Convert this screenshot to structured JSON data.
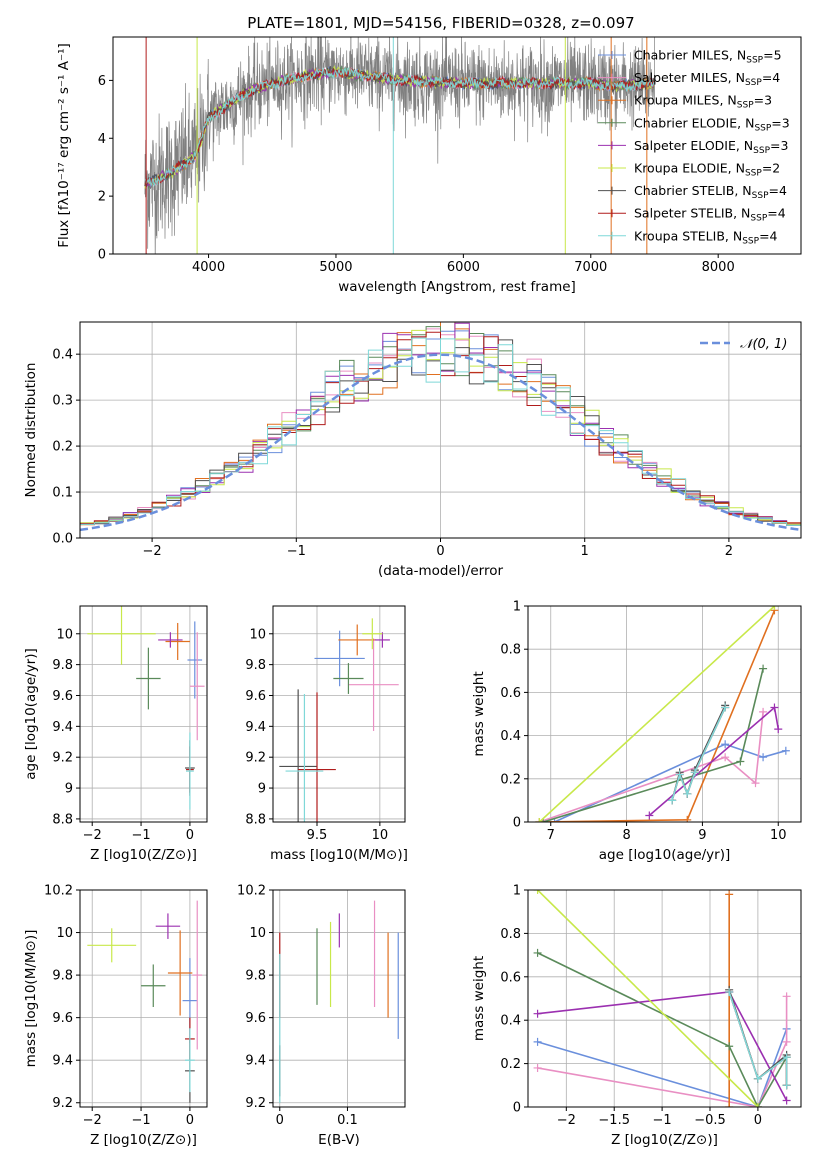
{
  "figure_title": "PLATE=1801, MJD=54156, FIBERID=0328, z=0.097",
  "colors": {
    "Chabrier MILES": "#6a8fdc",
    "Salpeter MILES": "#e98fc3",
    "Kroupa MILES": "#e07020",
    "Chabrier ELODIE": "#5a8a5a",
    "Salpeter ELODIE": "#9b30b0",
    "Kroupa ELODIE": "#c8e84a",
    "Chabrier STELIB": "#505050",
    "Salpeter STELIB": "#b01c1c",
    "Kroupa STELIB": "#7fd8d8",
    "normal": "#6a8fdc",
    "data": "#808080"
  },
  "chart_data": [
    {
      "id": "spectrum",
      "type": "line",
      "title": "PLATE=1801, MJD=54156, FIBERID=0328, z=0.097",
      "xlabel": "wavelength [Angstrom, rest frame]",
      "ylabel": "Flux [fλ10⁻¹⁷ erg cm⁻² s⁻¹ A⁻¹]",
      "xlim": [
        3250,
        8650
      ],
      "ylim": [
        0,
        7.5
      ],
      "xticks": [
        4000,
        5000,
        6000,
        7000,
        8000
      ],
      "yticks": [
        0,
        2,
        4,
        6
      ],
      "grid": false,
      "legend_position": "top-right",
      "legend": [
        "Chabrier MILES, N_SSP=5",
        "Salpeter MILES, N_SSP=4",
        "Kroupa MILES, N_SSP=3",
        "Chabrier ELODIE, N_SSP=3",
        "Salpeter ELODIE, N_SSP=3",
        "Kroupa ELODIE, N_SSP=2",
        "Chabrier STELIB, N_SSP=4",
        "Salpeter STELIB, N_SSP=4",
        "Kroupa STELIB, N_SSP=4"
      ],
      "data_range": [
        3500,
        8300
      ],
      "continuum": [
        [
          3500,
          2.4
        ],
        [
          3700,
          2.8
        ],
        [
          3900,
          3.4
        ],
        [
          4000,
          4.7
        ],
        [
          4300,
          5.6
        ],
        [
          4500,
          5.9
        ],
        [
          4800,
          6.2
        ],
        [
          5000,
          6.3
        ],
        [
          5500,
          6.0
        ],
        [
          6000,
          5.9
        ],
        [
          6500,
          5.9
        ],
        [
          7000,
          5.9
        ],
        [
          7200,
          5.8
        ],
        [
          7500,
          5.9
        ]
      ],
      "model_spikes": [
        {
          "x": 3510,
          "y": 0.0,
          "series": "Salpeter STELIB"
        },
        {
          "x": 3910,
          "y": 0.0,
          "series": "Kroupa ELODIE"
        },
        {
          "x": 5450,
          "y": 0.0,
          "series": "Kroupa STELIB"
        },
        {
          "x": 6800,
          "y": 0.0,
          "series": "Kroupa ELODIE"
        },
        {
          "x": 7160,
          "y": 0.0,
          "series": "Kroupa MILES"
        },
        {
          "x": 7440,
          "y": 0.0,
          "series": "Kroupa MILES"
        }
      ]
    },
    {
      "id": "residuals",
      "type": "line",
      "xlabel": "(data-model)/error",
      "ylabel": "Normed distribution",
      "xlim": [
        -2.5,
        2.5
      ],
      "ylim": [
        0,
        0.47
      ],
      "xticks": [
        -2,
        -1,
        0,
        1,
        2
      ],
      "yticks": [
        0.0,
        0.1,
        0.2,
        0.3,
        0.4
      ],
      "grid": true,
      "legend_position": "top-right",
      "legend": [
        "𝒩(0, 1)"
      ],
      "histogram_bins": 50,
      "normal_mean": 0,
      "normal_sigma": 1
    },
    {
      "id": "age_vs_Z",
      "type": "scatter",
      "xlabel": "Z [log10(Z/Z⊙)]",
      "ylabel": "age  [log10(age/yr)]",
      "xlim": [
        -2.25,
        0.35
      ],
      "ylim": [
        8.78,
        10.18
      ],
      "xticks": [
        -2,
        -1,
        0
      ],
      "yticks": [
        8.8,
        9.0,
        9.2,
        9.4,
        9.6,
        9.8,
        10.0
      ],
      "grid": true,
      "points": [
        {
          "series": "Chabrier MILES",
          "x": 0.1,
          "y": 9.83,
          "xerr": 0.15,
          "yerr": 0.25
        },
        {
          "series": "Salpeter MILES",
          "x": 0.15,
          "y": 9.66,
          "xerr": 0.15,
          "yerr": 0.35
        },
        {
          "series": "Kroupa MILES",
          "x": -0.25,
          "y": 9.95,
          "xerr": 0.25,
          "yerr": 0.12
        },
        {
          "series": "Chabrier ELODIE",
          "x": -0.85,
          "y": 9.71,
          "xerr": 0.25,
          "yerr": 0.2
        },
        {
          "series": "Salpeter ELODIE",
          "x": -0.4,
          "y": 9.96,
          "xerr": 0.25,
          "yerr": 0.05
        },
        {
          "series": "Kroupa ELODIE",
          "x": -1.4,
          "y": 10.0,
          "xerr": 0.7,
          "yerr": 0.2
        },
        {
          "series": "Chabrier STELIB",
          "x": 0.0,
          "y": 9.13,
          "xerr": 0.1,
          "yerr": 0.18
        },
        {
          "series": "Salpeter STELIB",
          "x": 0.0,
          "y": 9.12,
          "xerr": 0.08,
          "yerr": 0.15
        },
        {
          "series": "Kroupa STELIB",
          "x": 0.0,
          "y": 9.11,
          "xerr": 0.08,
          "yerr": 0.25
        }
      ]
    },
    {
      "id": "age_vs_mass",
      "type": "scatter",
      "xlabel": "mass [log10(M/M⊙)]",
      "ylabel": "",
      "xlim": [
        9.15,
        10.2
      ],
      "ylim": [
        8.78,
        10.18
      ],
      "xticks": [
        9.5,
        10.0
      ],
      "yticks": [
        8.8,
        9.0,
        9.2,
        9.4,
        9.6,
        9.8,
        10.0
      ],
      "grid": true,
      "points": [
        {
          "series": "Chabrier MILES",
          "x": 9.68,
          "y": 9.84,
          "xerr": 0.2,
          "yerr": 0.18
        },
        {
          "series": "Salpeter MILES",
          "x": 9.95,
          "y": 9.67,
          "xerr": 0.2,
          "yerr": 0.3
        },
        {
          "series": "Kroupa MILES",
          "x": 9.82,
          "y": 9.96,
          "xerr": 0.15,
          "yerr": 0.1
        },
        {
          "series": "Chabrier ELODIE",
          "x": 9.75,
          "y": 9.71,
          "xerr": 0.12,
          "yerr": 0.1
        },
        {
          "series": "Salpeter ELODIE",
          "x": 10.02,
          "y": 9.96,
          "xerr": 0.06,
          "yerr": 0.05
        },
        {
          "series": "Kroupa ELODIE",
          "x": 9.94,
          "y": 10.0,
          "xerr": 0.08,
          "yerr": 0.1
        },
        {
          "series": "Chabrier STELIB",
          "x": 9.35,
          "y": 9.14,
          "xerr": 0.15,
          "yerr": 0.5
        },
        {
          "series": "Salpeter STELIB",
          "x": 9.5,
          "y": 9.12,
          "xerr": 0.15,
          "yerr": 0.5
        },
        {
          "series": "Kroupa STELIB",
          "x": 9.4,
          "y": 9.11,
          "xerr": 0.15,
          "yerr": 0.5
        }
      ]
    },
    {
      "id": "weight_vs_age",
      "type": "line",
      "xlabel": "age  [log10(age/yr)]",
      "ylabel": "mass weight",
      "xlim": [
        6.7,
        10.3
      ],
      "ylim": [
        0,
        1.0
      ],
      "xticks": [
        7,
        8,
        9,
        10
      ],
      "yticks": [
        0.0,
        0.2,
        0.4,
        0.6,
        0.8,
        1.0
      ],
      "grid": true,
      "series": [
        {
          "name": "Chabrier MILES",
          "x": [
            7.05,
            9.3,
            9.8,
            10.1
          ],
          "y": [
            0.0,
            0.36,
            0.3,
            0.33
          ]
        },
        {
          "name": "Salpeter MILES",
          "x": [
            6.85,
            9.3,
            9.7,
            9.8
          ],
          "y": [
            0.0,
            0.3,
            0.18,
            0.51
          ]
        },
        {
          "name": "Kroupa MILES",
          "x": [
            6.85,
            8.8,
            9.95
          ],
          "y": [
            0.0,
            0.01,
            0.98
          ]
        },
        {
          "name": "Chabrier ELODIE",
          "x": [
            6.9,
            9.5,
            9.8
          ],
          "y": [
            0.0,
            0.28,
            0.71
          ]
        },
        {
          "name": "Salpeter ELODIE",
          "x": [
            8.3,
            9.95,
            10.0
          ],
          "y": [
            0.03,
            0.53,
            0.43
          ]
        },
        {
          "name": "Kroupa ELODIE",
          "x": [
            6.85,
            9.95
          ],
          "y": [
            0.0,
            1.0
          ]
        },
        {
          "name": "Chabrier STELIB",
          "x": [
            8.6,
            8.7,
            8.8,
            8.9,
            9.3
          ],
          "y": [
            0.1,
            0.23,
            0.13,
            0.24,
            0.54
          ]
        },
        {
          "name": "Salpeter STELIB",
          "x": [
            8.6,
            8.7,
            8.8,
            8.9,
            9.3
          ],
          "y": [
            0.1,
            0.22,
            0.13,
            0.23,
            0.53
          ]
        },
        {
          "name": "Kroupa STELIB",
          "x": [
            8.6,
            8.7,
            8.8,
            8.9,
            9.3
          ],
          "y": [
            0.1,
            0.22,
            0.13,
            0.23,
            0.53
          ]
        }
      ]
    },
    {
      "id": "mass_vs_Z",
      "type": "scatter",
      "xlabel": "Z [log10(Z/Z⊙)]",
      "ylabel": "mass [log10(M/M⊙)]",
      "xlim": [
        -2.25,
        0.35
      ],
      "ylim": [
        9.18,
        10.2
      ],
      "xticks": [
        -2,
        -1,
        0
      ],
      "yticks": [
        9.2,
        9.4,
        9.6,
        9.8,
        10.0,
        10.2
      ],
      "grid": true,
      "points": [
        {
          "series": "Chabrier MILES",
          "x": 0.0,
          "y": 9.68,
          "xerr": 0.15,
          "yerr": 0.2
        },
        {
          "series": "Salpeter MILES",
          "x": 0.15,
          "y": 9.8,
          "xerr": 0.1,
          "yerr": 0.35
        },
        {
          "series": "Kroupa MILES",
          "x": -0.2,
          "y": 9.81,
          "xerr": 0.25,
          "yerr": 0.2
        },
        {
          "series": "Chabrier ELODIE",
          "x": -0.75,
          "y": 9.75,
          "xerr": 0.25,
          "yerr": 0.1
        },
        {
          "series": "Salpeter ELODIE",
          "x": -0.45,
          "y": 10.03,
          "xerr": 0.25,
          "yerr": 0.06
        },
        {
          "series": "Kroupa ELODIE",
          "x": -1.6,
          "y": 9.94,
          "xerr": 0.5,
          "yerr": 0.08
        },
        {
          "series": "Chabrier STELIB",
          "x": 0.0,
          "y": 9.35,
          "xerr": 0.1,
          "yerr": 0.15
        },
        {
          "series": "Salpeter STELIB",
          "x": 0.0,
          "y": 9.5,
          "xerr": 0.1,
          "yerr": 0.1
        },
        {
          "series": "Kroupa STELIB",
          "x": 0.0,
          "y": 9.4,
          "xerr": 0.1,
          "yerr": 0.15
        }
      ]
    },
    {
      "id": "mass_vs_EBV",
      "type": "scatter",
      "xlabel": "E(B-V)",
      "ylabel": "",
      "xlim": [
        -0.01,
        0.185
      ],
      "ylim": [
        9.18,
        10.2
      ],
      "xticks": [
        0.0,
        0.1
      ],
      "yticks": [
        9.2,
        9.4,
        9.6,
        9.8,
        10.0,
        10.2
      ],
      "grid": true,
      "points": [
        {
          "series": "Chabrier MILES",
          "x": 0.175,
          "y": 9.75,
          "xerr": 0,
          "yerr": 0.25
        },
        {
          "series": "Salpeter MILES",
          "x": 0.14,
          "y": 9.9,
          "xerr": 0,
          "yerr": 0.25
        },
        {
          "series": "Kroupa MILES",
          "x": 0.16,
          "y": 9.8,
          "xerr": 0,
          "yerr": 0.2
        },
        {
          "series": "Chabrier ELODIE",
          "x": 0.055,
          "y": 9.84,
          "xerr": 0,
          "yerr": 0.18
        },
        {
          "series": "Salpeter ELODIE",
          "x": 0.088,
          "y": 10.01,
          "xerr": 0,
          "yerr": 0.08
        },
        {
          "series": "Kroupa ELODIE",
          "x": 0.075,
          "y": 9.85,
          "xerr": 0,
          "yerr": 0.2
        },
        {
          "series": "Chabrier STELIB",
          "x": 0.0,
          "y": 9.35,
          "xerr": 0,
          "yerr": 0.12
        },
        {
          "series": "Salpeter STELIB",
          "x": 0.0,
          "y": 9.8,
          "xerr": 0,
          "yerr": 0.2
        },
        {
          "series": "Kroupa STELIB",
          "x": 0.0,
          "y": 9.55,
          "xerr": 0,
          "yerr": 0.35
        }
      ]
    },
    {
      "id": "weight_vs_Z",
      "type": "line",
      "xlabel": "Z [log10(Z/Z⊙)]",
      "ylabel": "mass weight",
      "xlim": [
        -2.4,
        0.45
      ],
      "ylim": [
        0,
        1.0
      ],
      "xticks": [
        -2.0,
        -1.5,
        -1.0,
        -0.5,
        0.0
      ],
      "yticks": [
        0.0,
        0.2,
        0.4,
        0.6,
        0.8,
        1.0
      ],
      "grid": true,
      "series": [
        {
          "name": "Chabrier MILES",
          "x": [
            -2.3,
            0.0,
            0.3
          ],
          "y": [
            0.3,
            0.0,
            0.36
          ]
        },
        {
          "name": "Salpeter MILES",
          "x": [
            -2.3,
            0.0,
            0.3,
            0.3
          ],
          "y": [
            0.18,
            0.0,
            0.3,
            0.51
          ]
        },
        {
          "name": "Kroupa MILES",
          "x": [
            -0.3,
            -0.3
          ],
          "y": [
            0.0,
            0.98
          ]
        },
        {
          "name": "Chabrier ELODIE",
          "x": [
            -2.3,
            -0.3,
            0.0,
            0.3
          ],
          "y": [
            0.71,
            0.28,
            0.0,
            0.23
          ]
        },
        {
          "name": "Salpeter ELODIE",
          "x": [
            -2.3,
            -0.3,
            0.3
          ],
          "y": [
            0.43,
            0.53,
            0.03
          ]
        },
        {
          "name": "Kroupa ELODIE",
          "x": [
            -2.3,
            0.0
          ],
          "y": [
            1.0,
            0.0
          ]
        },
        {
          "name": "Chabrier STELIB",
          "x": [
            -0.3,
            0.0,
            0.3,
            0.3
          ],
          "y": [
            0.54,
            0.13,
            0.24,
            0.1
          ]
        },
        {
          "name": "Salpeter STELIB",
          "x": [
            -0.3,
            0.0,
            0.3,
            0.3
          ],
          "y": [
            0.53,
            0.13,
            0.23,
            0.1
          ]
        },
        {
          "name": "Kroupa STELIB",
          "x": [
            -0.3,
            0.0,
            0.3,
            0.3
          ],
          "y": [
            0.53,
            0.13,
            0.23,
            0.1
          ]
        }
      ]
    }
  ]
}
